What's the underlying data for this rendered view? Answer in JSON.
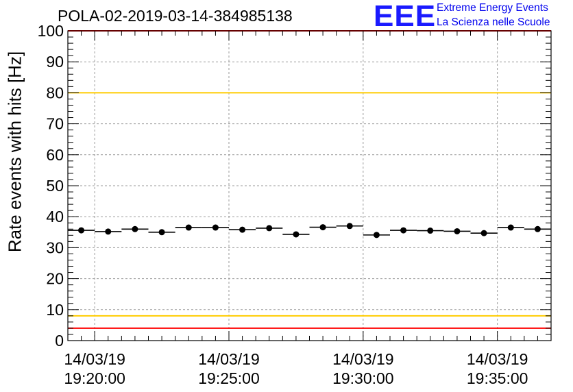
{
  "header": {
    "title": "POLA-02-2019-03-14-384985138",
    "logo_text": "EEE",
    "logo_line1": "Extreme Energy Events",
    "logo_line2": "La Scienza nelle Scuole"
  },
  "chart_data": {
    "type": "scatter",
    "title": "POLA-02-2019-03-14-384985138",
    "ylabel": "Rate events with hits [Hz]",
    "xlabel": "",
    "ylim": [
      0,
      100
    ],
    "yticks": [
      0,
      10,
      20,
      30,
      40,
      50,
      60,
      70,
      80,
      90,
      100
    ],
    "xlim": [
      "2019-03-14 19:19:00",
      "2019-03-14 19:37:00"
    ],
    "xticks": [
      {
        "date": "14/03/19",
        "time": "19:20:00"
      },
      {
        "date": "14/03/19",
        "time": "19:25:00"
      },
      {
        "date": "14/03/19",
        "time": "19:30:00"
      },
      {
        "date": "14/03/19",
        "time": "19:35:00"
      }
    ],
    "grid": true,
    "reference_lines": [
      {
        "y": 100,
        "color": "#ff0000"
      },
      {
        "y": 80,
        "color": "#ffcc00"
      },
      {
        "y": 8,
        "color": "#ffcc00"
      },
      {
        "y": 4,
        "color": "#ff0000"
      }
    ],
    "series": [
      {
        "x": [
          "19:19:30",
          "19:20:30",
          "19:21:30",
          "19:22:30",
          "19:23:30",
          "19:24:30",
          "19:25:30",
          "19:26:30",
          "19:27:30",
          "19:28:30",
          "19:29:30",
          "19:30:30",
          "19:31:30",
          "19:32:30",
          "19:33:30",
          "19:34:30",
          "19:35:30",
          "19:36:30"
        ],
        "values": [
          35.6,
          35.2,
          36.0,
          35.0,
          36.5,
          36.5,
          35.8,
          36.3,
          34.3,
          36.6,
          37.0,
          34.1,
          35.6,
          35.5,
          35.3,
          34.7,
          36.5,
          36.0
        ],
        "bin_width_seconds": 60,
        "color": "#000000"
      }
    ]
  }
}
